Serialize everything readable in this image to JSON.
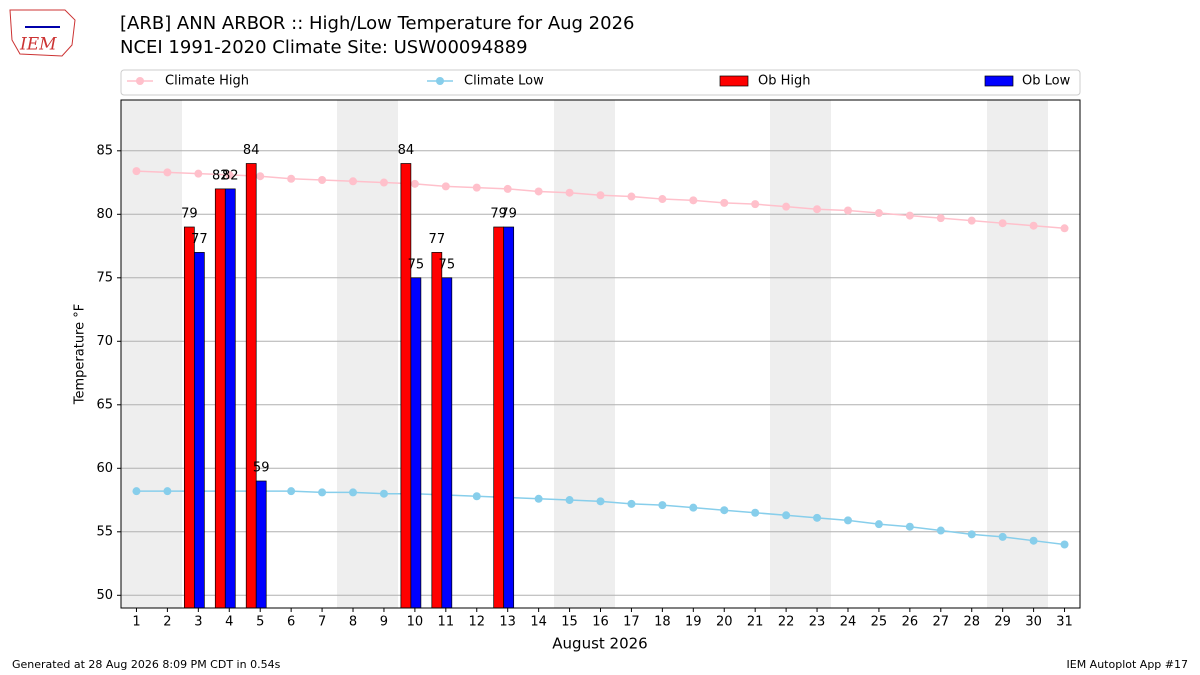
{
  "logo_text": "IEM",
  "chart_data": {
    "type": "bar",
    "title": "[ARB] ANN ARBOR :: High/Low Temperature for Aug 2026",
    "subtitle": "NCEI 1991-2020 Climate Site: USW00094889",
    "x_label": "August 2026",
    "y_label": "Temperature °F",
    "x": [
      1,
      2,
      3,
      4,
      5,
      6,
      7,
      8,
      9,
      10,
      11,
      12,
      13,
      14,
      15,
      16,
      17,
      18,
      19,
      20,
      21,
      22,
      23,
      24,
      25,
      26,
      27,
      28,
      29,
      30,
      31
    ],
    "series": [
      {
        "name": "Climate High",
        "type": "line",
        "color": "#ffc0cb",
        "values": [
          83.4,
          83.3,
          83.2,
          83.1,
          83.0,
          82.8,
          82.7,
          82.6,
          82.5,
          82.4,
          82.2,
          82.1,
          82.0,
          81.8,
          81.7,
          81.5,
          81.4,
          81.2,
          81.1,
          80.9,
          80.8,
          80.6,
          80.4,
          80.3,
          80.1,
          79.9,
          79.7,
          79.5,
          79.3,
          79.1,
          78.9
        ]
      },
      {
        "name": "Climate Low",
        "type": "line",
        "color": "#87ceeb",
        "values": [
          58.2,
          58.2,
          58.2,
          58.2,
          58.2,
          58.2,
          58.1,
          58.1,
          58.0,
          58.0,
          57.9,
          57.8,
          57.7,
          57.6,
          57.5,
          57.4,
          57.2,
          57.1,
          56.9,
          56.7,
          56.5,
          56.3,
          56.1,
          55.9,
          55.6,
          55.4,
          55.1,
          54.8,
          54.6,
          54.3,
          54.0
        ]
      },
      {
        "name": "Ob High",
        "type": "bar",
        "color": "#ff0000",
        "values": [
          null,
          null,
          79,
          82,
          84,
          null,
          null,
          null,
          null,
          84,
          77,
          null,
          79,
          null,
          null,
          null,
          null,
          null,
          null,
          null,
          null,
          null,
          null,
          null,
          null,
          null,
          null,
          null,
          null,
          null,
          null
        ]
      },
      {
        "name": "Ob Low",
        "type": "bar",
        "color": "#0000ff",
        "values": [
          null,
          null,
          77,
          82,
          59,
          null,
          null,
          null,
          null,
          75,
          75,
          null,
          79,
          null,
          null,
          null,
          null,
          null,
          null,
          null,
          null,
          null,
          null,
          null,
          null,
          null,
          null,
          null,
          null,
          null,
          null
        ]
      }
    ],
    "xlim": [
      0.5,
      31.5
    ],
    "xticks": [
      1,
      2,
      3,
      4,
      5,
      6,
      7,
      8,
      9,
      10,
      11,
      12,
      13,
      14,
      15,
      16,
      17,
      18,
      19,
      20,
      21,
      22,
      23,
      24,
      25,
      26,
      27,
      28,
      29,
      30,
      31
    ],
    "ylim": [
      49,
      89
    ],
    "yticks": [
      50,
      55,
      60,
      65,
      70,
      75,
      80,
      85
    ],
    "grid": true,
    "legend": "top",
    "footer_left": "Generated at 28 Aug 2026 8:09 PM CDT in 0.54s",
    "footer_right": "IEM Autoplot App #17"
  }
}
